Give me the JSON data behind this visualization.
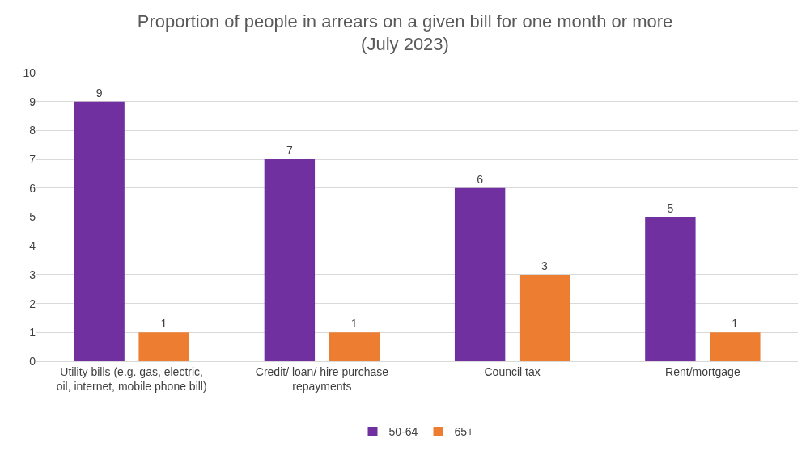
{
  "chart_data": {
    "type": "bar",
    "title": "Proportion of people in arrears on a given bill for one month or more",
    "subtitle": "(July 2023)",
    "categories": [
      "Utility bills (e.g. gas, electric, oil, internet, mobile phone bill)",
      "Credit/ loan/ hire purchase repayments",
      "Council tax",
      "Rent/mortgage"
    ],
    "series": [
      {
        "name": "50-64",
        "color": "#7030a0",
        "values": [
          9,
          7,
          6,
          5
        ]
      },
      {
        "name": "65+",
        "color": "#ed7d31",
        "values": [
          1,
          1,
          3,
          1
        ]
      }
    ],
    "ylim": [
      0,
      10
    ],
    "yticks": [
      0,
      1,
      2,
      3,
      4,
      5,
      6,
      7,
      8,
      9,
      10
    ],
    "grid": "y",
    "legend": "bottom",
    "data_labels": true
  }
}
